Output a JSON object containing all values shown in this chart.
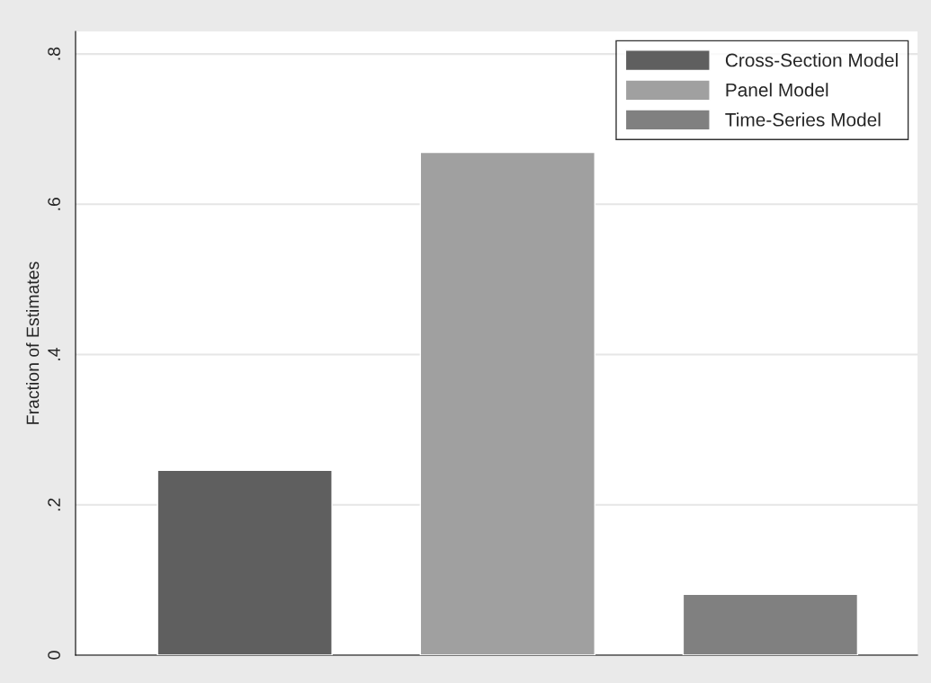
{
  "chart_data": {
    "type": "bar",
    "ylabel": "Fraction of Estimates",
    "categories": [
      null,
      null,
      null
    ],
    "series": [
      {
        "name": "Cross-Section Model",
        "color": "#5f5f5f",
        "values": [
          0.246,
          null,
          null
        ]
      },
      {
        "name": "Panel Model",
        "color": "#a0a0a0",
        "values": [
          null,
          0.669,
          null
        ]
      },
      {
        "name": "Time-Series Model",
        "color": "#808080",
        "values": [
          null,
          null,
          0.081
        ]
      }
    ],
    "ylim": [
      0,
      0.83
    ],
    "yticks": [
      {
        "value": 0,
        "label": "0"
      },
      {
        "value": 0.2,
        "label": ".2"
      },
      {
        "value": 0.4,
        "label": ".4"
      },
      {
        "value": 0.6,
        "label": ".6"
      },
      {
        "value": 0.8,
        "label": ".8"
      }
    ],
    "grid": "y",
    "legend": "top right",
    "tick_labels": "y"
  }
}
